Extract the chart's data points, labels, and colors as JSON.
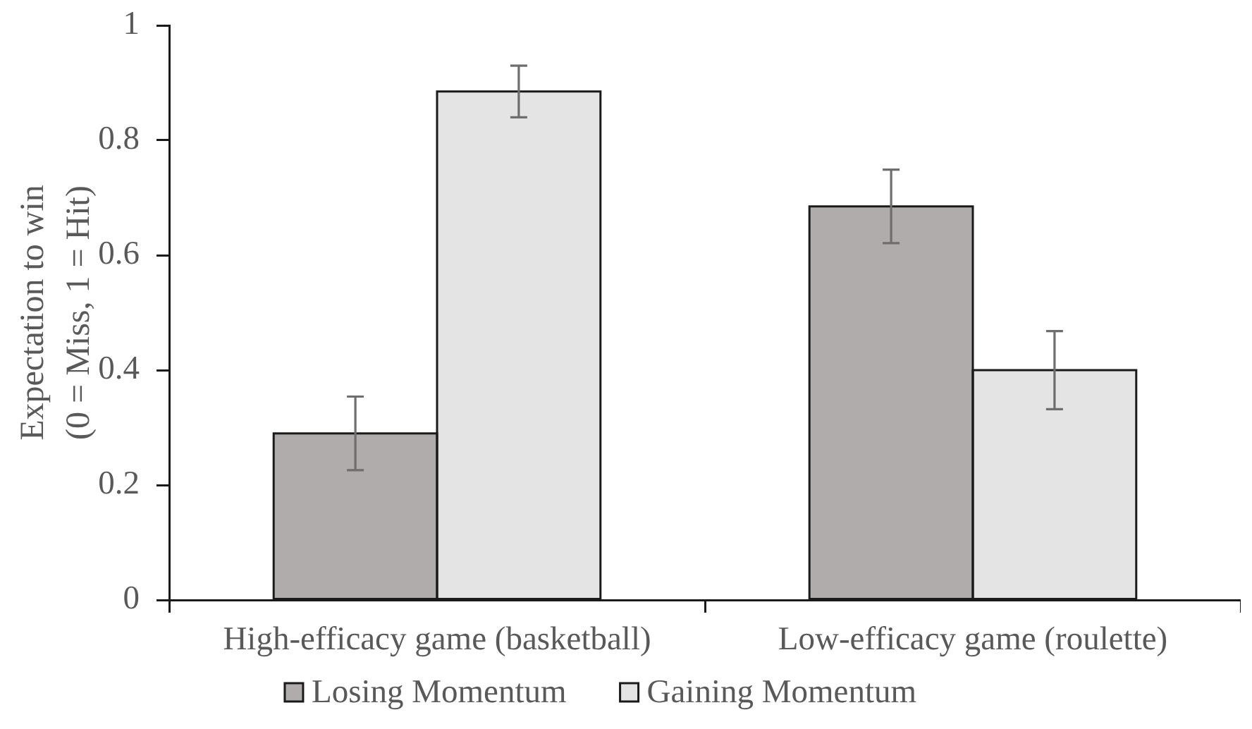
{
  "chart_data": {
    "type": "bar",
    "ylabel": "Expectation to win\n(0 = Miss, 1 = Hit)",
    "categories": [
      "High-efficacy game (basketball)",
      "Low-efficacy game (roulette)"
    ],
    "series": [
      {
        "name": "Losing Momentum",
        "color": "#afacab",
        "values": [
          0.29,
          0.685
        ],
        "errors": [
          0.064,
          0.064
        ]
      },
      {
        "name": "Gaining Momentum",
        "color": "#e4e4e4",
        "values": [
          0.885,
          0.4
        ],
        "errors": [
          0.045,
          0.068
        ]
      }
    ],
    "ylim": [
      0,
      1
    ],
    "yticks": [
      0,
      0.2,
      0.4,
      0.6,
      0.8,
      1
    ],
    "legend": "bottom"
  }
}
